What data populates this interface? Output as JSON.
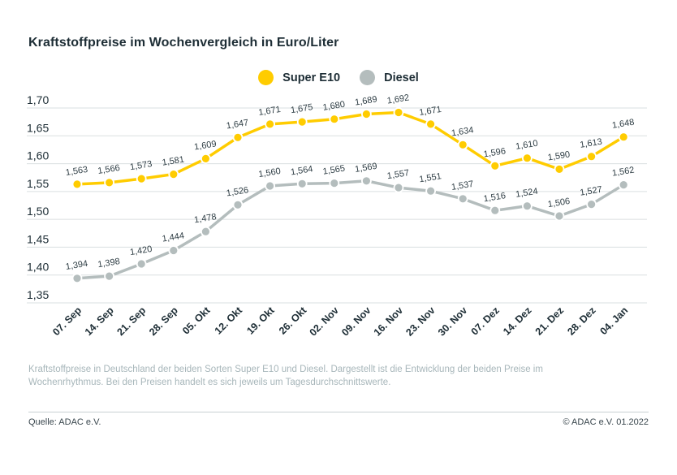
{
  "title": "Kraftstoffpreise im Wochenvergleich in Euro/Liter",
  "chart_data": {
    "type": "line",
    "title": "Kraftstoffpreise im Wochenvergleich in Euro/Liter",
    "categories": [
      "07. Sep",
      "14. Sep",
      "21. Sep",
      "28. Sep",
      "05. Okt",
      "12. Okt",
      "19. Okt",
      "26. Okt",
      "02. Nov",
      "09. Nov",
      "16. Nov",
      "23. Nov",
      "30. Nov",
      "07. Dez",
      "14. Dez",
      "21. Dez",
      "28. Dez",
      "04. Jan"
    ],
    "series": [
      {
        "name": "Super E10",
        "color": "#FFCC00",
        "values": [
          1.563,
          1.566,
          1.573,
          1.581,
          1.609,
          1.647,
          1.671,
          1.675,
          1.68,
          1.689,
          1.692,
          1.671,
          1.634,
          1.596,
          1.61,
          1.59,
          1.613,
          1.648
        ]
      },
      {
        "name": "Diesel",
        "color": "#B4BDBD",
        "values": [
          1.394,
          1.398,
          1.42,
          1.444,
          1.478,
          1.526,
          1.56,
          1.564,
          1.565,
          1.569,
          1.557,
          1.551,
          1.537,
          1.516,
          1.524,
          1.506,
          1.527,
          1.562
        ]
      }
    ],
    "ylim": [
      1.35,
      1.7
    ],
    "yticks": [
      {
        "label": "1,70",
        "value": 1.7
      },
      {
        "label": "1,65",
        "value": 1.65
      },
      {
        "label": "1,60",
        "value": 1.6
      },
      {
        "label": "1,55",
        "value": 1.55
      },
      {
        "label": "1,50",
        "value": 1.5
      },
      {
        "label": "1,45",
        "value": 1.45
      },
      {
        "label": "1,40",
        "value": 1.4
      },
      {
        "label": "1,35",
        "value": 1.35
      }
    ],
    "grid": true,
    "legend_position": "top-center",
    "decimal_separator": ",",
    "unit": "Euro/Liter",
    "gridline_color": "#dadfe0"
  },
  "footer": {
    "description": "Kraftstoffpreise in Deutschland der beiden Sorten Super E10 und Diesel. Dargestellt ist die Entwicklung der beiden Preise im Wochenrhythmus. Bei den Preisen handelt es sich jeweils um Tagesdurchschnittswerte.",
    "source": "Quelle: ADAC e.V.",
    "copyright": "© ADAC e.V. 01.2022"
  }
}
